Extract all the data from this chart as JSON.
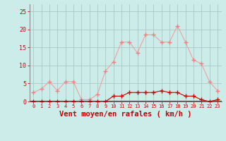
{
  "hours": [
    0,
    1,
    2,
    3,
    4,
    5,
    6,
    7,
    8,
    9,
    10,
    11,
    12,
    13,
    14,
    15,
    16,
    17,
    18,
    19,
    20,
    21,
    22,
    23
  ],
  "rafales": [
    2.5,
    3.5,
    5.5,
    3.0,
    5.5,
    5.5,
    0.5,
    0.5,
    2.0,
    8.5,
    11.0,
    16.5,
    16.5,
    13.5,
    18.5,
    18.5,
    16.5,
    16.5,
    21.0,
    16.5,
    11.5,
    10.5,
    5.5,
    3.0
  ],
  "moyen": [
    0.0,
    0.0,
    0.0,
    0.0,
    0.0,
    0.0,
    0.0,
    0.0,
    0.0,
    0.0,
    1.5,
    1.5,
    2.5,
    2.5,
    2.5,
    2.5,
    3.0,
    2.5,
    2.5,
    1.5,
    1.5,
    0.5,
    0.0,
    0.5
  ],
  "bg_color": "#ccecea",
  "line_color_rafales": "#f0a0a0",
  "line_color_moyen": "#cc0000",
  "marker_color_rafales": "#f08080",
  "marker_color_moyen": "#cc0000",
  "grid_color": "#aac8c6",
  "axis_color": "#888888",
  "xlabel": "Vent moyen/en rafales ( km/h )",
  "ylim": [
    0,
    27
  ],
  "yticks": [
    0,
    5,
    10,
    15,
    20,
    25
  ],
  "label_color": "#cc0000",
  "tick_color": "#cc0000",
  "bottom_line_color": "#cc0000"
}
